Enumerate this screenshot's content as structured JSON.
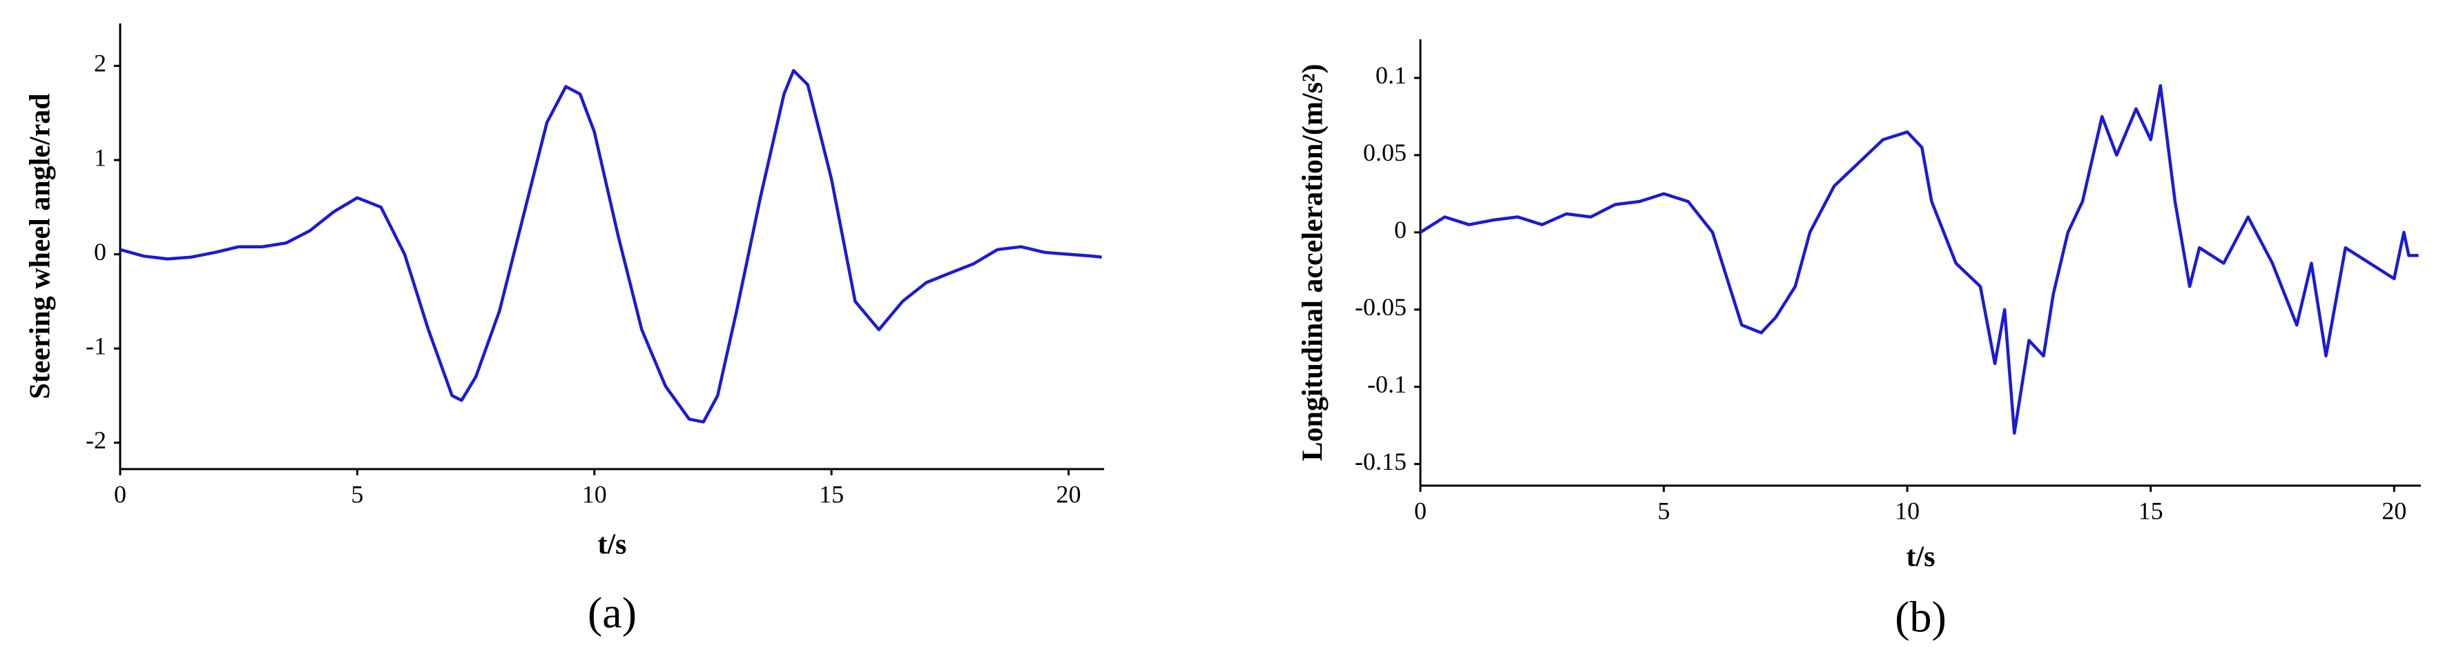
{
  "chart_data": [
    {
      "type": "line",
      "y_label": "Steering wheel angle/rad",
      "x_label": "t/s",
      "caption": "(a)",
      "color": "#1a1adb",
      "x": [
        0,
        0.5,
        1,
        1.5,
        2,
        2.5,
        3,
        3.5,
        4,
        4.5,
        5,
        5.5,
        6,
        6.5,
        7,
        7.2,
        7.5,
        8,
        8.5,
        9,
        9.4,
        9.7,
        10,
        10.5,
        11,
        11.5,
        12,
        12.3,
        12.6,
        13,
        13.5,
        14,
        14.2,
        14.5,
        15,
        15.5,
        16,
        16.5,
        17,
        17.5,
        18,
        18.5,
        19,
        19.5,
        20,
        20.5,
        20.7
      ],
      "values": [
        0.05,
        -0.02,
        -0.05,
        -0.03,
        0.02,
        0.08,
        0.08,
        0.12,
        0.25,
        0.45,
        0.6,
        0.5,
        0,
        -0.8,
        -1.5,
        -1.55,
        -1.3,
        -0.6,
        0.4,
        1.4,
        1.78,
        1.7,
        1.3,
        0.2,
        -0.8,
        -1.4,
        -1.75,
        -1.78,
        -1.5,
        -0.6,
        0.6,
        1.7,
        1.95,
        1.8,
        0.8,
        -0.5,
        -0.8,
        -0.5,
        -0.3,
        -0.2,
        -0.1,
        0.05,
        0.08,
        0.02,
        0,
        -0.02,
        -0.03
      ],
      "xlim": [
        0,
        20.75
      ],
      "xticks": [
        0,
        5,
        10,
        15,
        20
      ],
      "ylim": [
        -2.28,
        2.45
      ],
      "yticks": [
        -2,
        -1,
        0,
        1,
        2
      ]
    },
    {
      "type": "line",
      "y_label": "Longitudinal acceleration/(m/s²)",
      "x_label": "t/s",
      "caption": "(b)",
      "color": "#1a1adb",
      "x": [
        0,
        0.5,
        1,
        1.5,
        2,
        2.5,
        3,
        3.5,
        4,
        4.5,
        5,
        5.5,
        6,
        6.3,
        6.6,
        7,
        7.3,
        7.7,
        8,
        8.5,
        9,
        9.5,
        10,
        10.3,
        10.5,
        11,
        11.5,
        11.8,
        12,
        12.2,
        12.5,
        12.8,
        13,
        13.3,
        13.6,
        14,
        14.3,
        14.7,
        15,
        15.2,
        15.5,
        15.8,
        16,
        16.5,
        17,
        17.5,
        18,
        18.3,
        18.6,
        19,
        19.5,
        20,
        20.2,
        20.3,
        20.5
      ],
      "values": [
        0,
        0.01,
        0.005,
        0.008,
        0.01,
        0.005,
        0.012,
        0.01,
        0.018,
        0.02,
        0.025,
        0.02,
        0,
        -0.03,
        -0.06,
        -0.065,
        -0.055,
        -0.035,
        0,
        0.03,
        0.045,
        0.06,
        0.065,
        0.055,
        0.02,
        -0.02,
        -0.035,
        -0.085,
        -0.05,
        -0.13,
        -0.07,
        -0.08,
        -0.04,
        0,
        0.02,
        0.075,
        0.05,
        0.08,
        0.06,
        0.095,
        0.02,
        -0.035,
        -0.01,
        -0.02,
        0.01,
        -0.02,
        -0.06,
        -0.02,
        -0.08,
        -0.01,
        -0.02,
        -0.03,
        0,
        -0.015,
        -0.015
      ],
      "xlim": [
        0,
        20.55
      ],
      "xticks": [
        0,
        5,
        10,
        15,
        20
      ],
      "ylim": [
        -0.164,
        0.125
      ],
      "yticks": [
        -0.15,
        -0.1,
        -0.05,
        0,
        0.05,
        0.1
      ]
    }
  ]
}
